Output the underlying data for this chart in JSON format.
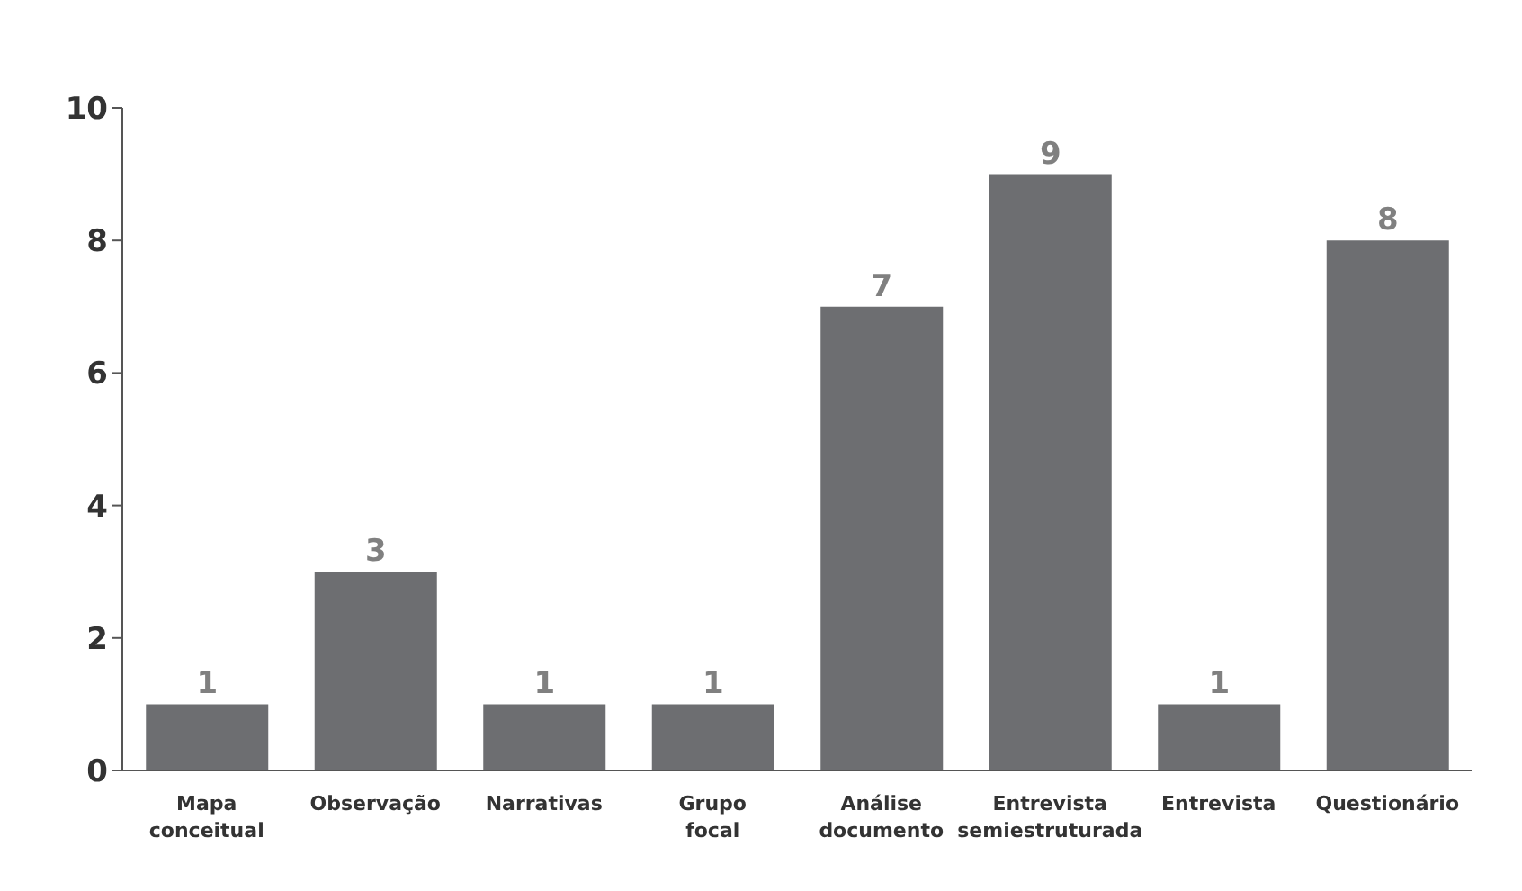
{
  "chart_data": {
    "type": "bar",
    "categories": [
      "Mapa conceitual",
      "Observação",
      "Narrativas",
      "Grupo focal",
      "Análise documento",
      "Entrevista semiestruturada",
      "Entrevista",
      "Questionário"
    ],
    "values": [
      1,
      3,
      1,
      1,
      7,
      9,
      1,
      8
    ],
    "color": "#6d6e71",
    "ylim": [
      0,
      10
    ],
    "yticks": [
      0,
      2,
      4,
      6,
      8,
      10
    ],
    "data_labels": true,
    "grid": false,
    "legend": false
  }
}
